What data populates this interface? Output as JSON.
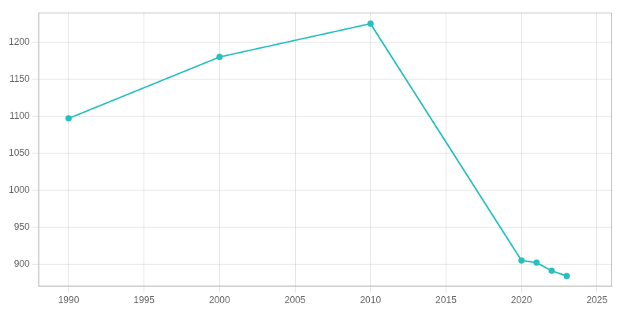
{
  "chart_data": {
    "type": "line",
    "x": [
      1990,
      2000,
      2010,
      2020,
      2021,
      2022,
      2023
    ],
    "values": [
      1097,
      1180,
      1225,
      905,
      902,
      891,
      884
    ],
    "color": "#2abfbf",
    "marker": "circle",
    "xlim": [
      1988,
      2026
    ],
    "ylim": [
      870,
      1240
    ],
    "xticks": [
      1990,
      1995,
      2000,
      2005,
      2010,
      2015,
      2020,
      2025
    ],
    "yticks": [
      900,
      950,
      1000,
      1050,
      1100,
      1150,
      1200
    ],
    "grid": true
  }
}
